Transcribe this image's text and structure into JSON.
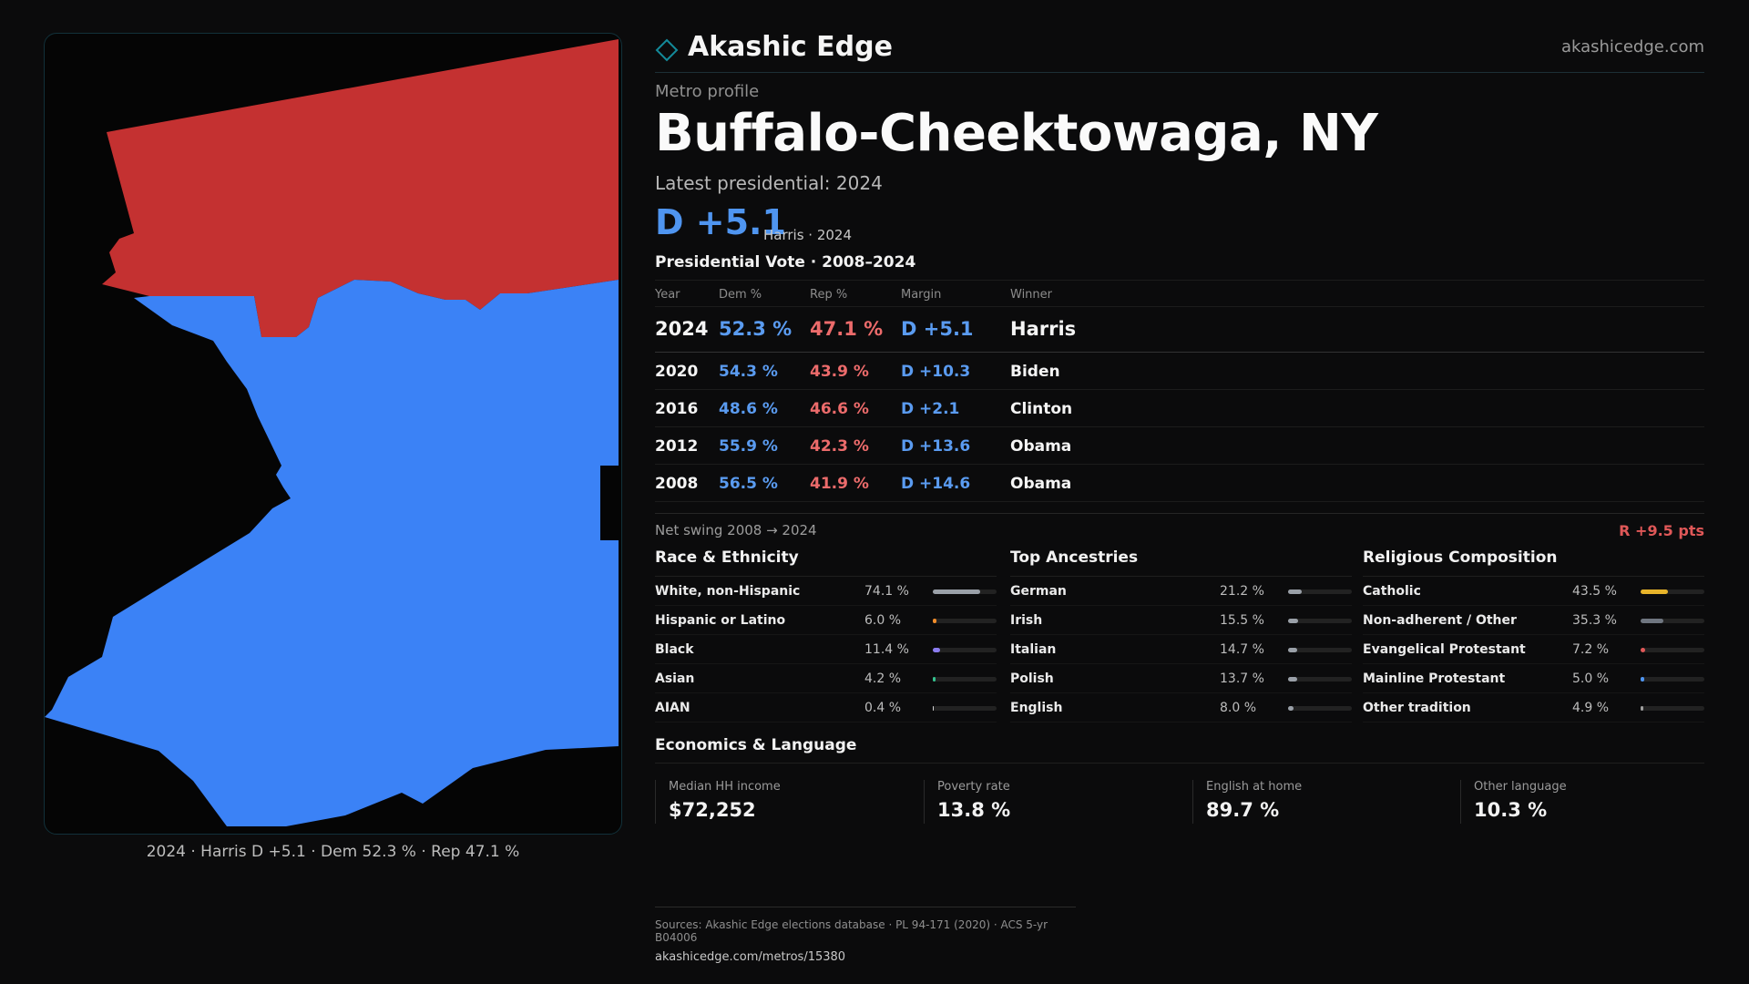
{
  "map": {
    "caption": "2024 · Harris D +5.1 · Dem 52.3 % · Rep 47.1 %",
    "colors": {
      "dem": "#3b82f6",
      "rep": "#c43131",
      "background": "#050505"
    }
  },
  "header": {
    "brand": "Akashic Edge",
    "url": "akashicedge.com",
    "logo_icon": "diamond-outline-icon"
  },
  "profile": {
    "eyebrow": "Metro profile",
    "title": "Buffalo-Cheektowaga, NY",
    "latest_label": "Latest presidential: 2024",
    "margin": "D +5.1",
    "margin_sub": "Harris · 2024"
  },
  "presidential": {
    "title": "Presidential Vote · 2008–2024",
    "columns": [
      "Year",
      "Dem %",
      "Rep %",
      "Margin",
      "Winner"
    ],
    "rows": [
      {
        "year": "2024",
        "dem": "52.3 %",
        "rep": "47.1 %",
        "margin": "D +5.1",
        "winner": "Harris"
      },
      {
        "year": "2020",
        "dem": "54.3 %",
        "rep": "43.9 %",
        "margin": "D +10.3",
        "winner": "Biden"
      },
      {
        "year": "2016",
        "dem": "48.6 %",
        "rep": "46.6 %",
        "margin": "D +2.1",
        "winner": "Clinton"
      },
      {
        "year": "2012",
        "dem": "55.9 %",
        "rep": "42.3 %",
        "margin": "D +13.6",
        "winner": "Obama"
      },
      {
        "year": "2008",
        "dem": "56.5 %",
        "rep": "41.9 %",
        "margin": "D +14.6",
        "winner": "Obama"
      }
    ],
    "swing_label": "Net swing 2008 → 2024",
    "swing_value": "R +9.5 pts"
  },
  "race": {
    "title": "Race & Ethnicity",
    "rows": [
      {
        "label": "White, non-Hispanic",
        "value": "74.1 %",
        "pct": 74.1,
        "color": "#9aa0a8"
      },
      {
        "label": "Hispanic or Latino",
        "value": "6.0 %",
        "pct": 6.0,
        "color": "#f08c2a"
      },
      {
        "label": "Black",
        "value": "11.4 %",
        "pct": 11.4,
        "color": "#8b7cf0"
      },
      {
        "label": "Asian",
        "value": "4.2 %",
        "pct": 4.2,
        "color": "#34c38f"
      },
      {
        "label": "AIAN",
        "value": "0.4 %",
        "pct": 0.4,
        "color": "#d2d2d2"
      }
    ]
  },
  "ancestry": {
    "title": "Top Ancestries",
    "rows": [
      {
        "label": "German",
        "value": "21.2 %",
        "pct": 21.2,
        "color": "#9aa0a8"
      },
      {
        "label": "Irish",
        "value": "15.5 %",
        "pct": 15.5,
        "color": "#9aa0a8"
      },
      {
        "label": "Italian",
        "value": "14.7 %",
        "pct": 14.7,
        "color": "#9aa0a8"
      },
      {
        "label": "Polish",
        "value": "13.7 %",
        "pct": 13.7,
        "color": "#9aa0a8"
      },
      {
        "label": "English",
        "value": "8.0 %",
        "pct": 8.0,
        "color": "#9aa0a8"
      }
    ]
  },
  "religion": {
    "title": "Religious Composition",
    "rows": [
      {
        "label": "Catholic",
        "value": "43.5 %",
        "pct": 43.5,
        "color": "#e8b42a"
      },
      {
        "label": "Non-adherent / Other",
        "value": "35.3 %",
        "pct": 35.3,
        "color": "#6f7680"
      },
      {
        "label": "Evangelical Protestant",
        "value": "7.2 %",
        "pct": 7.2,
        "color": "#e05858"
      },
      {
        "label": "Mainline Protestant",
        "value": "5.0 %",
        "pct": 5.0,
        "color": "#4f95f0"
      },
      {
        "label": "Other tradition",
        "value": "4.9 %",
        "pct": 4.9,
        "color": "#a0a0a0"
      }
    ]
  },
  "economics": {
    "title": "Economics & Language",
    "items": [
      {
        "label": "Median HH income",
        "value": "$72,252"
      },
      {
        "label": "Poverty rate",
        "value": "13.8 %"
      },
      {
        "label": "English at home",
        "value": "89.7 %"
      },
      {
        "label": "Other language",
        "value": "10.3 %"
      }
    ]
  },
  "sources": {
    "text": "Sources: Akashic Edge elections database · PL 94-171 (2020) · ACS 5-yr B04006",
    "link": "akashicedge.com/metros/15380"
  }
}
